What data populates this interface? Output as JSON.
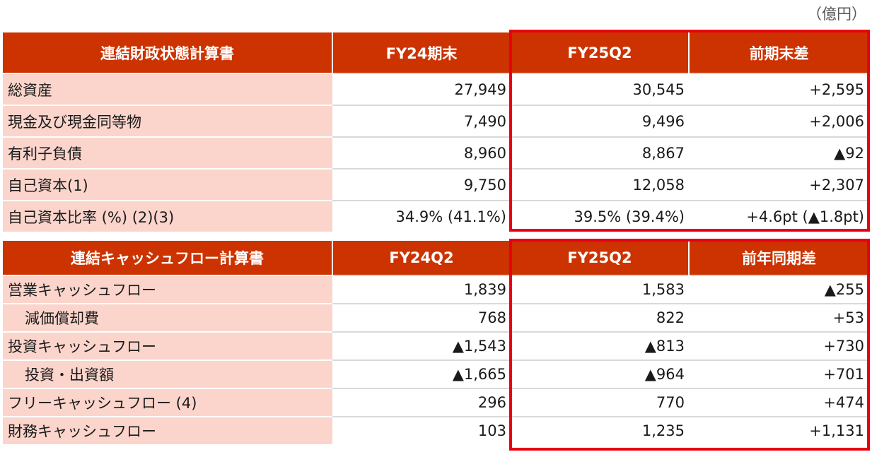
{
  "unit_label": "（億円）",
  "balance_sheet": {
    "headers": [
      "連結財政状態計算書",
      "FY24期末",
      "FY25Q2",
      "前期末差"
    ],
    "rows": [
      {
        "label": "総資産",
        "v1": "27,949",
        "v2": "30,545",
        "diff": "+2,595"
      },
      {
        "label": "現金及び現金同等物",
        "v1": "7,490",
        "v2": "9,496",
        "diff": "+2,006"
      },
      {
        "label": "有利子負債",
        "v1": "8,960",
        "v2": "8,867",
        "diff": "▲92"
      },
      {
        "label": "自己資本(1)",
        "v1": "9,750",
        "v2": "12,058",
        "diff": "+2,307"
      },
      {
        "label": "自己資本比率 (%) (2)(3)",
        "v1": "34.9% (41.1%)",
        "v2": "39.5% (39.4%)",
        "diff": "+4.6pt (▲1.8pt)"
      }
    ]
  },
  "cash_flow": {
    "headers": [
      "連結キャッシュフロー計算書",
      "FY24Q2",
      "FY25Q2",
      "前年同期差"
    ],
    "rows": [
      {
        "label": "営業キャッシュフロー",
        "v1": "1,839",
        "v2": "1,583",
        "diff": "▲255"
      },
      {
        "label": "減価償却費",
        "v1": "768",
        "v2": "822",
        "diff": "+53"
      },
      {
        "label": "投資キャッシュフロー",
        "v1": "▲1,543",
        "v2": "▲813",
        "diff": "+730"
      },
      {
        "label": "投資・出資額",
        "v1": "▲1,665",
        "v2": "▲964",
        "diff": "+701"
      },
      {
        "label": "フリーキャッシュフロー (4)",
        "v1": "296",
        "v2": "770",
        "diff": "+474"
      },
      {
        "label": "財務キャッシュフロー",
        "v1": "103",
        "v2": "1,235",
        "diff": "+1,131"
      }
    ]
  },
  "colors": {
    "header_bg": "#cc3300",
    "label_bg": "#fbd5cc",
    "highlight_border": "#e60012"
  }
}
